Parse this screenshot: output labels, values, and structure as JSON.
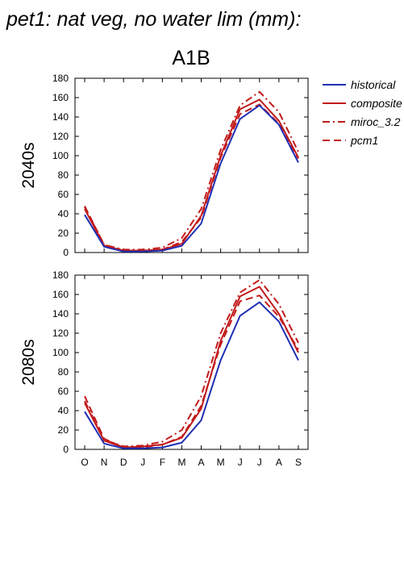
{
  "page_title": "pet1: nat veg, no water lim (mm):",
  "chart_data": {
    "type": "line",
    "title": "A1B",
    "categories": [
      "O",
      "N",
      "D",
      "J",
      "F",
      "M",
      "A",
      "M",
      "J",
      "J",
      "A",
      "S"
    ],
    "ylim": [
      0,
      180
    ],
    "yticks": [
      0,
      20,
      40,
      60,
      80,
      100,
      120,
      140,
      160,
      180
    ],
    "grid": false,
    "legend_position": "top-right",
    "legend": [
      {
        "name": "historical",
        "color": "#1f2fb3",
        "style": "solid"
      },
      {
        "name": "composite",
        "color": "#c21a1a",
        "style": "solid"
      },
      {
        "name": "miroc_3.2",
        "color": "#c21a1a",
        "style": "dash-dot"
      },
      {
        "name": "pcm1",
        "color": "#c21a1a",
        "style": "dashed"
      }
    ],
    "panels": [
      {
        "label": "2040s",
        "series": [
          {
            "name": "historical",
            "values": [
              39,
              6,
              1,
              1,
              2,
              7,
              30,
              92,
              138,
              152,
              132,
              93
            ]
          },
          {
            "name": "composite",
            "values": [
              45,
              7,
              2,
              2,
              3,
              9,
              38,
              100,
              148,
              158,
              136,
              98
            ]
          },
          {
            "name": "miroc_3.2",
            "values": [
              47,
              8,
              3,
              3,
              5,
              15,
              45,
              106,
              152,
              166,
              145,
              104
            ]
          },
          {
            "name": "pcm1",
            "values": [
              48,
              8,
              2,
              2,
              3,
              11,
              36,
              98,
              143,
              153,
              133,
              97
            ]
          }
        ]
      },
      {
        "label": "2080s",
        "series": [
          {
            "name": "historical",
            "values": [
              39,
              6,
              1,
              1,
              2,
              7,
              30,
              92,
              138,
              152,
              132,
              92
            ]
          },
          {
            "name": "composite",
            "values": [
              48,
              9,
              2,
              3,
              5,
              12,
              42,
              112,
              158,
              168,
              140,
              100
            ]
          },
          {
            "name": "miroc_3.2",
            "values": [
              50,
              10,
              3,
              4,
              8,
              20,
              55,
              120,
              162,
              175,
              150,
              110
            ]
          },
          {
            "name": "pcm1",
            "values": [
              55,
              11,
              2,
              2,
              5,
              13,
              45,
              108,
              153,
              159,
              137,
              103
            ]
          }
        ]
      }
    ]
  }
}
